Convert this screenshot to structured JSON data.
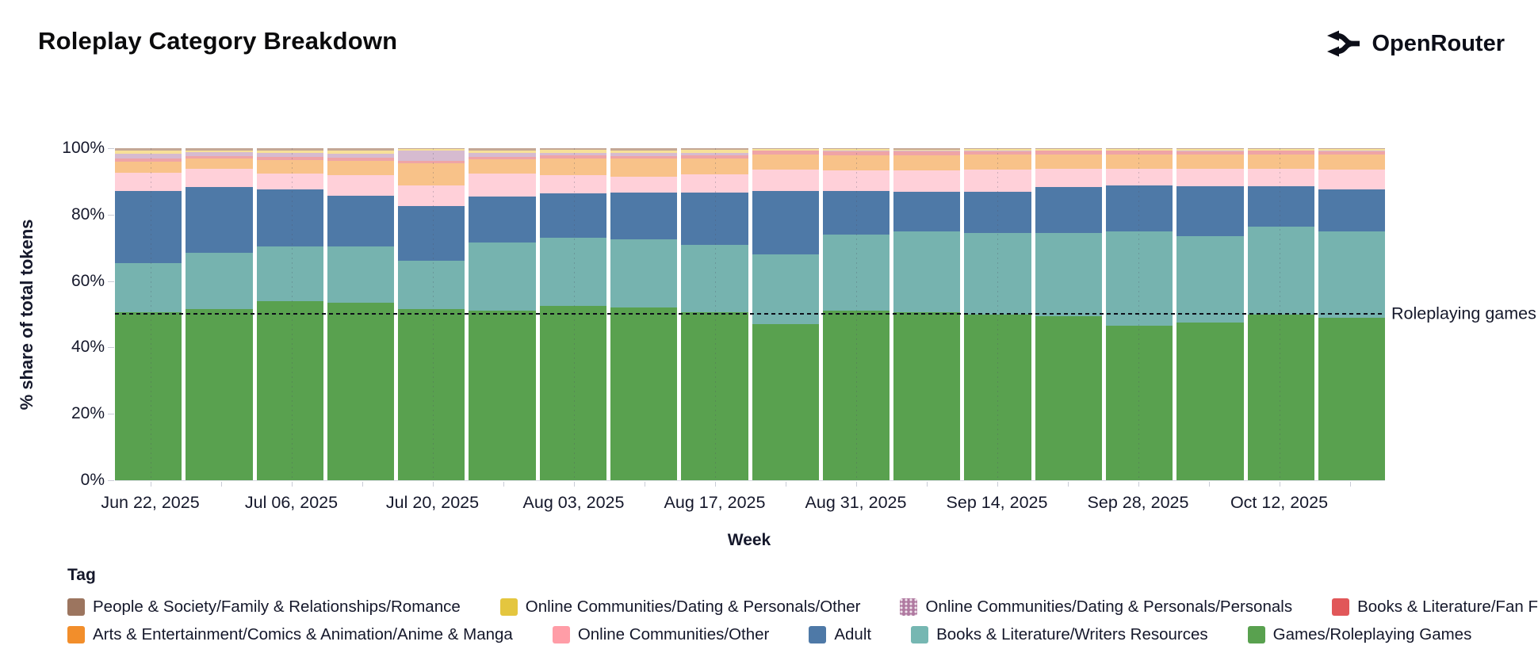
{
  "page": {
    "title": "Roleplay Category Breakdown",
    "brand": "OpenRouter"
  },
  "chart_data": {
    "type": "bar",
    "stacked": true,
    "normalized_percent": true,
    "title": "Roleplay Category Breakdown",
    "xlabel": "Week",
    "ylabel": "% share of total tokens",
    "ylim": [
      0,
      100
    ],
    "yticks": [
      "0%",
      "20%",
      "40%",
      "60%",
      "80%",
      "100%"
    ],
    "x_tick_labels": [
      "Jun 22, 2025",
      "Jul 06, 2025",
      "Jul 20, 2025",
      "Aug 03, 2025",
      "Aug 17, 2025",
      "Aug 31, 2025",
      "Sep 14, 2025",
      "Sep 28, 2025",
      "Oct 12, 2025"
    ],
    "categories": [
      "Jun 22, 2025",
      "Jun 29, 2025",
      "Jul 06, 2025",
      "Jul 13, 2025",
      "Jul 20, 2025",
      "Jul 27, 2025",
      "Aug 03, 2025",
      "Aug 10, 2025",
      "Aug 17, 2025",
      "Aug 24, 2025",
      "Aug 31, 2025",
      "Sep 07, 2025",
      "Sep 14, 2025",
      "Sep 21, 2025",
      "Sep 28, 2025",
      "Oct 05, 2025",
      "Oct 12, 2025",
      "Oct 19, 2025"
    ],
    "series": [
      {
        "name": "Games/Roleplaying Games",
        "color": "#59A14F",
        "values": [
          50.5,
          51.5,
          54,
          53.5,
          51.5,
          51,
          52.5,
          52,
          50.5,
          47,
          51,
          50.5,
          50,
          49.5,
          46.5,
          47.5,
          50,
          49
        ]
      },
      {
        "name": "Books & Literature/Writers Resources",
        "color": "#76B3AF",
        "values": [
          15,
          17,
          16.5,
          17,
          14.5,
          20.5,
          20.5,
          20.5,
          20.5,
          21,
          23,
          24.5,
          24.5,
          25,
          28.5,
          26,
          26.4,
          26
        ]
      },
      {
        "name": "Adult",
        "color": "#4E79A7",
        "values": [
          21.5,
          19.8,
          17,
          15.2,
          16.6,
          13.9,
          13.5,
          14.1,
          15.6,
          19,
          13.1,
          11.9,
          12.3,
          13.8,
          13.7,
          15,
          12.2,
          12.5
        ]
      },
      {
        "name": "Online Communities/Other",
        "color": "#FFD0D9",
        "values": [
          5.5,
          5.4,
          4.8,
          6.2,
          6.3,
          6.9,
          5.4,
          4.8,
          5.5,
          6.5,
          6.3,
          6.4,
          6.7,
          5.4,
          5.1,
          5.2,
          5.2,
          6
        ]
      },
      {
        "name": "Arts & Entertainment/Comics & Animation/Anime & Manga",
        "color": "#F8C289",
        "values": [
          3.5,
          3.2,
          4.2,
          4.4,
          6.5,
          4.3,
          5.1,
          5.4,
          4.9,
          4.6,
          4.5,
          4.6,
          4.5,
          4.3,
          4.3,
          4.3,
          4.3,
          4.5
        ]
      },
      {
        "name": "Books & Literature/Fan Fiction",
        "color": "#EFA4A6",
        "values": [
          0.8,
          0.8,
          1,
          0.9,
          0.9,
          0.9,
          0.8,
          0.9,
          0.9,
          1.2,
          1.1,
          1.1,
          1.1,
          1.2,
          1.1,
          1.1,
          1.1,
          1.1
        ]
      },
      {
        "name": "Online Communities/Dating & Personals/Personals",
        "color": "#D6BBD0",
        "pattern": "dots",
        "values": [
          1.6,
          1,
          1.1,
          1.2,
          3.1,
          1,
          0.8,
          0.8,
          0.7,
          0.1,
          0.3,
          0.2,
          0.2,
          0.2,
          0.2,
          0.2,
          0.2,
          0.2
        ]
      },
      {
        "name": "Online Communities/Dating & Personals/Other",
        "color": "#F7E098",
        "values": [
          1,
          0.7,
          0.8,
          0.9,
          0.3,
          0.9,
          0.9,
          0.9,
          0.9,
          0.3,
          0.4,
          0.4,
          0.4,
          0.3,
          0.3,
          0.4,
          0.4,
          0.4
        ]
      },
      {
        "name": "People & Society/Family & Relationships/Romance",
        "color": "#C4A795",
        "values": [
          0.6,
          0.6,
          0.6,
          0.7,
          0.3,
          0.6,
          0.5,
          0.6,
          0.5,
          0.3,
          0.3,
          0.4,
          0.3,
          0.3,
          0.3,
          0.3,
          0.2,
          0.3
        ]
      }
    ],
    "annotation": {
      "label": "Roleplaying games",
      "y": 50,
      "style": "dashed"
    },
    "legend_position": "bottom"
  },
  "legend": {
    "title": "Tag",
    "rows": [
      [
        {
          "label": "People & Society/Family & Relationships/Romance",
          "color": "#9C755F"
        },
        {
          "label": "Online Communities/Dating & Personals/Other",
          "color": "#E4C63F"
        },
        {
          "label": "Online Communities/Dating & Personals/Personals",
          "color": "#B07AA1",
          "pattern": "dots"
        },
        {
          "label": "Books & Literature/Fan Fiction",
          "color": "#E15759"
        }
      ],
      [
        {
          "label": "Arts & Entertainment/Comics & Animation/Anime & Manga",
          "color": "#F28E2B"
        },
        {
          "label": "Online Communities/Other",
          "color": "#FF9DA7"
        },
        {
          "label": "Adult",
          "color": "#4E79A7"
        },
        {
          "label": "Books & Literature/Writers Resources",
          "color": "#76B7B2"
        },
        {
          "label": "Games/Roleplaying Games",
          "color": "#59A14F"
        }
      ]
    ]
  }
}
